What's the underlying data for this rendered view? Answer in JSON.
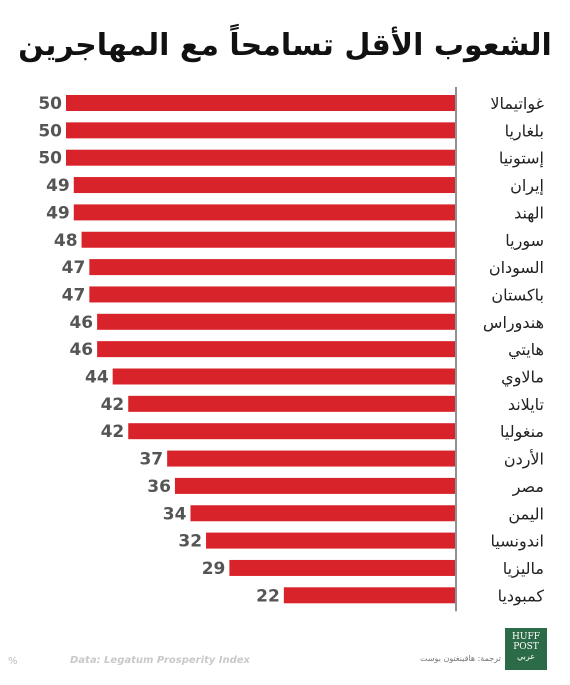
{
  "colors": {
    "bar": "#d8232a",
    "value_text": "#555555",
    "label_text": "#222222",
    "axis": "#222222"
  },
  "chart_data": {
    "type": "bar",
    "orientation": "horizontal",
    "title": "الشعوب الأقل تسامحاً مع المهاجرين",
    "categories": [
      "غواتيمالا",
      "بلغاريا",
      "إستونيا",
      "إيران",
      "الهند",
      "سوريا",
      "السودان",
      "باكستان",
      "هندوراس",
      "هايتي",
      "مالاوي",
      "تايلاند",
      "منغوليا",
      "الأردن",
      "مصر",
      "اليمن",
      "اندونسيا",
      "ماليزيا",
      "كمبوديا"
    ],
    "values": [
      50,
      50,
      50,
      49,
      49,
      48,
      47,
      47,
      46,
      46,
      44,
      42,
      42,
      37,
      36,
      34,
      32,
      29,
      22
    ],
    "xlim": [
      0,
      50
    ],
    "bar_direction": "right-to-left",
    "value_labels": true,
    "grid": false
  },
  "footer": {
    "percent": "%",
    "source": "Data: Legatum Prosperity Index",
    "credit": "ترجمة: هافينغتون بوست",
    "logo_line1": "HUFF",
    "logo_line2": "POST",
    "logo_line3": "عربي"
  }
}
